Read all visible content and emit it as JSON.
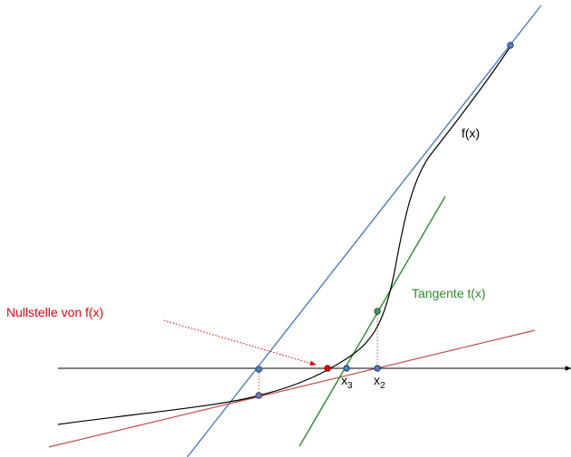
{
  "labels": {
    "function_label": "f(x)",
    "tangent_label": "Tangente t(x)",
    "root_label": "Nullstelle von f(x)",
    "x2_base": "x",
    "x2_sub": "2",
    "x3_base": "x",
    "x3_sub": "3"
  },
  "colors": {
    "curve": "#000000",
    "axis": "#000000",
    "blue_line": "#4a7ebb",
    "green_line": "#2e8b2e",
    "red_line": "#c0504d",
    "root_label": "#e8000b",
    "tangent_label": "#2e8b2e",
    "point_fill": "#4f81bd",
    "point_stroke": "#1f3f6f",
    "root_point": "#e8000b",
    "guide": "#c0504d"
  }
}
